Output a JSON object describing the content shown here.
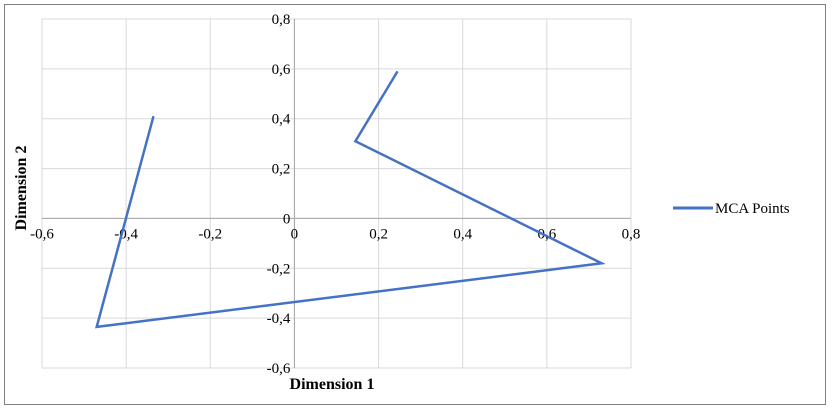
{
  "chart_data": {
    "type": "line",
    "title": "",
    "xlabel": "Dimension 1",
    "ylabel": "Dimension 2",
    "xlim": [
      -0.6,
      0.8
    ],
    "ylim": [
      -0.6,
      0.8
    ],
    "x_ticks": [
      "-0,6",
      "-0,4",
      "-0,2",
      "0",
      "0,2",
      "0,4",
      "0,6",
      "0,8"
    ],
    "x_tick_values": [
      -0.6,
      -0.4,
      -0.2,
      0,
      0.2,
      0.4,
      0.6,
      0.8
    ],
    "y_ticks": [
      "0,8",
      "0,6",
      "0,4",
      "0,2",
      "0",
      "-0,2",
      "-0,4",
      "-0,6"
    ],
    "y_tick_values": [
      0.8,
      0.6,
      0.4,
      0.2,
      0,
      -0.2,
      -0.4,
      -0.6
    ],
    "grid": true,
    "legend_position": "right",
    "series": [
      {
        "name": "MCA Points",
        "color": "#4472c4",
        "x": [
          -0.335,
          -0.47,
          0.73,
          0.145,
          0.245
        ],
        "y": [
          0.41,
          -0.435,
          -0.18,
          0.31,
          0.59
        ]
      }
    ]
  }
}
